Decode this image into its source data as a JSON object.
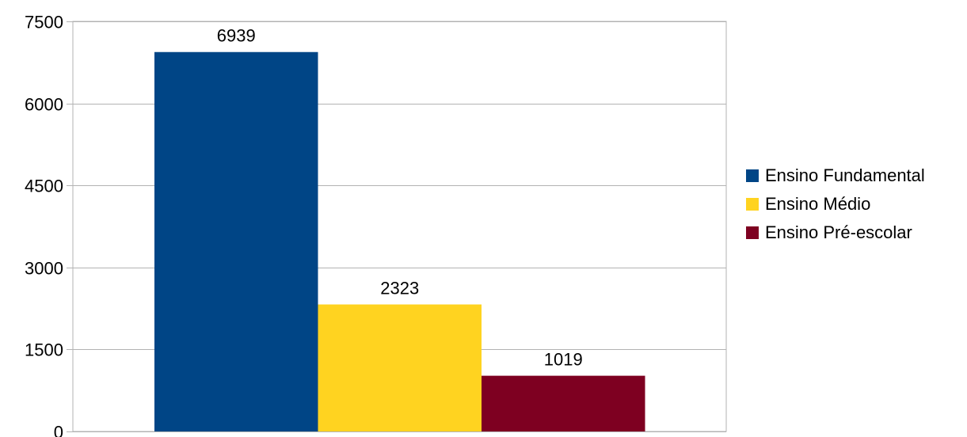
{
  "chart_data": {
    "type": "bar",
    "title": "",
    "xlabel": "",
    "ylabel": "",
    "ylim": [
      0,
      7500
    ],
    "yticks": [
      "0",
      "1500",
      "3000",
      "4500",
      "6000",
      "7500"
    ],
    "grid": true,
    "legend_position": "right",
    "series": [
      {
        "name": "Ensino Fundamental",
        "value": 6939,
        "label": "6939",
        "color": "#004586"
      },
      {
        "name": "Ensino Médio",
        "value": 2323,
        "label": "2323",
        "color": "#FFD320"
      },
      {
        "name": "Ensino Pré-escolar",
        "value": 1019,
        "label": "1019",
        "color": "#7E0021"
      }
    ]
  }
}
